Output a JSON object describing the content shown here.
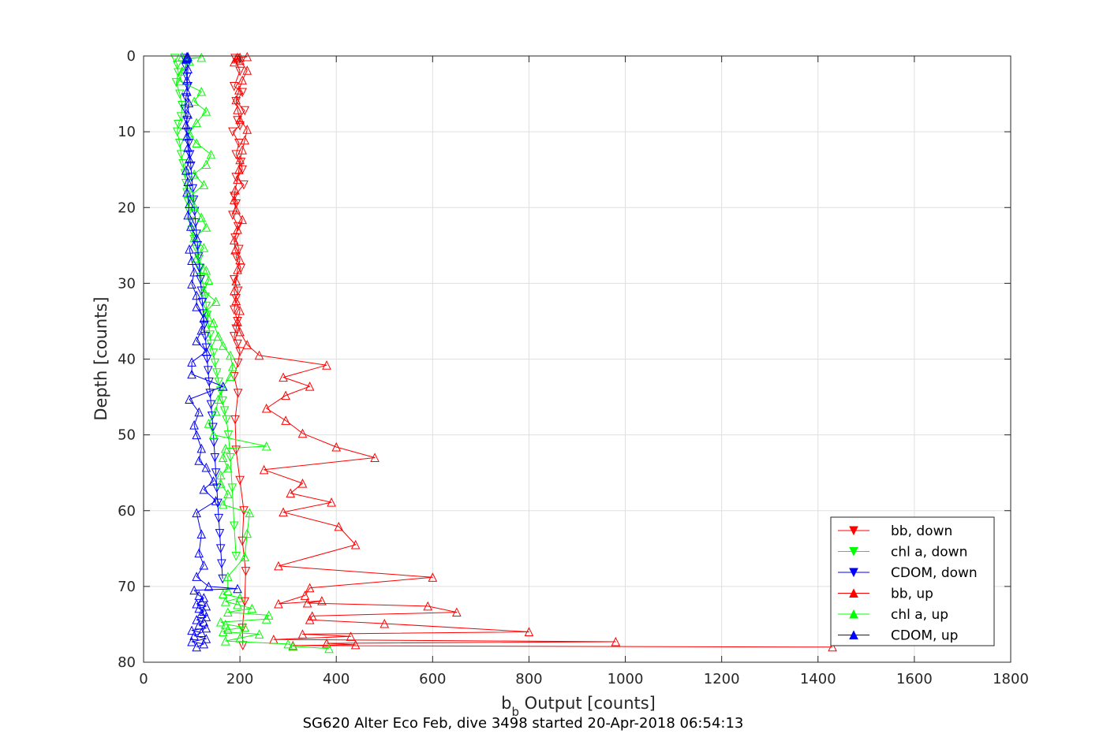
{
  "chart_data": {
    "type": "line",
    "caption": "SG620 Alter Eco Feb, dive 3498 started 20-Apr-2018 06:54:13",
    "xlabel": {
      "main": "b",
      "sub": "b",
      "rest": " Output [counts]"
    },
    "ylabel": "Depth [counts]",
    "xlim": [
      0,
      1800
    ],
    "ylim": [
      0,
      80
    ],
    "y_reversed": true,
    "grid": true,
    "x_ticks": [
      0,
      200,
      400,
      600,
      800,
      1000,
      1200,
      1400,
      1600,
      1800
    ],
    "y_ticks": [
      0,
      10,
      20,
      30,
      40,
      50,
      60,
      70,
      80
    ],
    "legend_position": "bottom-right",
    "series": [
      {
        "name": "bb, down",
        "color": "#ff0000",
        "marker": "triangle-down",
        "x": [
          190,
          200,
          188,
          205,
          192,
          210,
          195,
          200,
          185,
          198,
          192,
          202,
          205,
          192,
          208,
          188,
          192,
          185,
          196,
          190,
          198,
          192,
          202,
          188,
          196,
          192,
          188,
          195,
          192,
          188,
          195,
          200,
          196,
          188,
          196,
          190,
          192,
          200,
          208,
          205,
          212,
          210,
          205,
          206
        ],
        "y": [
          0.3,
          2,
          4,
          4.8,
          6,
          7.2,
          8.5,
          9.2,
          10,
          11.5,
          13,
          14,
          15,
          16,
          17,
          18.5,
          19.5,
          21,
          22.5,
          24,
          25.5,
          26.5,
          28,
          29.5,
          31,
          32,
          33.5,
          35,
          36,
          37,
          38,
          39,
          40.5,
          42.3,
          44.5,
          48,
          52,
          56,
          60,
          64,
          68,
          72,
          75.5,
          77.8
        ]
      },
      {
        "name": "chl a, down",
        "color": "#00ff00",
        "marker": "triangle-down",
        "x": [
          65,
          70,
          72,
          68,
          75,
          80,
          78,
          72,
          70,
          75,
          78,
          82,
          86,
          88,
          90,
          92,
          95,
          98,
          100,
          105,
          110,
          115,
          118,
          120,
          125,
          128,
          130,
          132,
          135,
          138,
          140,
          145,
          148,
          152,
          156,
          160,
          164,
          168,
          172,
          176,
          180,
          184,
          188,
          192
        ],
        "y": [
          0.3,
          1.2,
          2.2,
          3.5,
          5,
          6.5,
          8,
          9,
          10,
          11.5,
          13,
          14.2,
          15.5,
          16.8,
          18,
          19.2,
          20.5,
          21.8,
          23,
          24.2,
          25.5,
          26.8,
          28,
          29.2,
          30.5,
          31.8,
          33,
          34.2,
          35.5,
          36.8,
          38,
          39.2,
          40.5,
          41.8,
          43,
          44.2,
          45.5,
          46.8,
          48,
          50,
          53,
          57,
          62,
          66
        ]
      },
      {
        "name": "CDOM, down",
        "color": "#0000ff",
        "marker": "triangle-down",
        "x": [
          85,
          88,
          90,
          92,
          88,
          86,
          90,
          92,
          94,
          96,
          98,
          100,
          102,
          104,
          106,
          108,
          110,
          112,
          114,
          116,
          118,
          120,
          122,
          124,
          126,
          128,
          130,
          132,
          134,
          136,
          138,
          140,
          142,
          144,
          146,
          148,
          150,
          152,
          154,
          156,
          158,
          160,
          162,
          164
        ],
        "y": [
          0.3,
          1.5,
          2.8,
          4,
          5.5,
          7,
          8.5,
          10,
          11.5,
          13,
          14.5,
          16,
          17.5,
          19,
          20.5,
          22,
          23.5,
          25,
          26.5,
          28,
          29.5,
          31,
          32.5,
          34,
          35.5,
          37,
          38.5,
          40,
          41.5,
          43,
          44.5,
          46,
          47.5,
          49,
          51,
          53,
          55,
          57,
          59,
          61,
          63,
          65,
          67,
          69
        ]
      },
      {
        "name": "bb, up",
        "color": "#ff0000",
        "marker": "triangle-up",
        "x": [
          1430,
          310,
          440,
          380,
          980,
          270,
          430,
          330,
          800,
          500,
          345,
          350,
          650,
          590,
          340,
          370,
          280,
          335,
          345,
          600,
          280,
          440,
          405,
          290,
          390,
          305,
          330,
          250,
          480,
          400,
          330,
          295,
          255,
          295,
          345,
          290,
          380,
          240,
          215,
          200,
          195,
          200,
          192,
          188,
          192,
          195,
          200,
          190,
          188,
          195,
          205,
          192,
          188,
          190,
          195,
          198,
          200,
          205,
          210,
          215,
          200,
          195,
          192,
          198,
          205,
          215,
          200,
          195,
          192,
          188,
          200,
          215
        ],
        "y": [
          78,
          77.8,
          77.7,
          77.5,
          77.3,
          77.0,
          76.6,
          76.3,
          76.0,
          74.9,
          74.4,
          73.9,
          73.4,
          72.6,
          72.2,
          71.9,
          72.3,
          71.2,
          70.2,
          68.8,
          67.3,
          64.5,
          62.1,
          60.2,
          58.9,
          57.7,
          56.4,
          54.6,
          53.0,
          51.6,
          49.8,
          48.1,
          46.5,
          44.8,
          43.6,
          42.4,
          40.8,
          39.5,
          38.1,
          36.4,
          35.1,
          33.6,
          32.3,
          31.0,
          29.7,
          28.2,
          26.9,
          25.6,
          24.3,
          22.9,
          21.6,
          20.3,
          19.0,
          17.7,
          16.3,
          15.0,
          13.7,
          12.4,
          11.1,
          9.7,
          8.4,
          7.1,
          5.8,
          4.5,
          3.2,
          1.9,
          0.6,
          0.2,
          0.4,
          0.8,
          0.2,
          0.1
        ]
      },
      {
        "name": "chl a, up",
        "color": "#00ff00",
        "marker": "triangle-up",
        "x": [
          385,
          310,
          300,
          170,
          200,
          240,
          165,
          175,
          210,
          170,
          160,
          255,
          260,
          175,
          225,
          195,
          170,
          200,
          165,
          175,
          175,
          210,
          215,
          220,
          165,
          175,
          160,
          160,
          175,
          165,
          170,
          255,
          145,
          135,
          150,
          155,
          165,
          180,
          185,
          180,
          165,
          155,
          145,
          130,
          150,
          125,
          135,
          130,
          110,
          125,
          105,
          130,
          120,
          105,
          100,
          125,
          105,
          130,
          140,
          110,
          95,
          110,
          130,
          105,
          120,
          75,
          80,
          95,
          88,
          120,
          90,
          80
        ],
        "y": [
          78.2,
          77.9,
          77.6,
          77.2,
          76.8,
          76.3,
          76.0,
          75.7,
          75.4,
          75.0,
          74.7,
          74.3,
          73.8,
          73.4,
          72.9,
          72.4,
          72.0,
          71.5,
          71.0,
          70.6,
          68.7,
          66.1,
          63.0,
          60.3,
          59.2,
          57.8,
          56.4,
          55.3,
          54.4,
          53.0,
          51.8,
          51.5,
          50.0,
          48.5,
          46.9,
          45.3,
          43.6,
          42.3,
          41.0,
          39.5,
          38.2,
          37.0,
          35.2,
          33.7,
          32.4,
          31.0,
          29.6,
          28.3,
          26.7,
          25.3,
          24.0,
          22.6,
          21.3,
          19.8,
          18.3,
          17.0,
          15.6,
          14.3,
          13.0,
          11.5,
          10.2,
          8.8,
          7.3,
          6.0,
          4.7,
          3.3,
          2.0,
          0.7,
          0.3,
          0.2,
          0.4,
          0.1
        ]
      },
      {
        "name": "CDOM, up",
        "color": "#0000ff",
        "marker": "triangle-up",
        "x": [
          110,
          125,
          100,
          130,
          105,
          120,
          100,
          130,
          115,
          125,
          110,
          130,
          120,
          125,
          115,
          130,
          110,
          120,
          125,
          115,
          105,
          195,
          135,
          110,
          125,
          115,
          120,
          110,
          150,
          125,
          145,
          130,
          115,
          120,
          110,
          105,
          115,
          95,
          165,
          100,
          100,
          130,
          110,
          120,
          125,
          110,
          110,
          100,
          105,
          100,
          95,
          110,
          98,
          92,
          95,
          90,
          92,
          88,
          95,
          92,
          90,
          88,
          92,
          94,
          90,
          90,
          92,
          88,
          90,
          92,
          90,
          90
        ],
        "y": [
          78.0,
          77.6,
          77.3,
          76.9,
          76.5,
          76.1,
          75.8,
          75.5,
          75.1,
          74.7,
          74.4,
          74.0,
          73.6,
          73.3,
          72.9,
          72.6,
          72.3,
          72.0,
          71.5,
          71.2,
          70.5,
          70.3,
          70.0,
          68.7,
          67.2,
          65.6,
          63.1,
          60.3,
          58.7,
          57.2,
          56.1,
          54.3,
          53.4,
          51.8,
          50.0,
          48.7,
          47.0,
          45.3,
          43.6,
          42.0,
          40.4,
          39.0,
          37.6,
          36.2,
          34.6,
          33.1,
          31.6,
          30.1,
          28.5,
          27.0,
          25.5,
          24.0,
          22.5,
          21.0,
          19.5,
          18.0,
          16.6,
          15.1,
          13.6,
          12.1,
          10.6,
          9.1,
          7.7,
          6.2,
          4.7,
          3.2,
          1.7,
          0.4,
          0.2,
          0.1,
          0.3,
          0.1
        ]
      }
    ]
  }
}
